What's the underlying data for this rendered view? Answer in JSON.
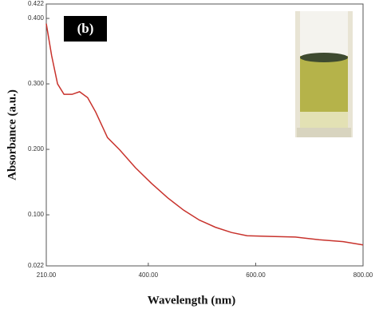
{
  "chart_data": {
    "type": "line",
    "annotation": "(b)",
    "x_label": "Wavelength (nm)",
    "y_label": "Absorbance (a.u.)",
    "x": [
      210,
      220,
      231,
      243,
      258,
      272,
      287,
      302,
      324,
      347,
      376,
      406,
      436,
      466,
      495,
      525,
      555,
      584,
      629,
      674,
      718,
      763,
      800
    ],
    "series": [
      {
        "color": "#c8322c",
        "values": [
          0.392,
          0.343,
          0.3,
          0.284,
          0.284,
          0.288,
          0.279,
          0.257,
          0.218,
          0.199,
          0.172,
          0.148,
          0.126,
          0.107,
          0.092,
          0.081,
          0.073,
          0.068,
          0.067,
          0.066,
          0.062,
          0.059,
          0.054
        ]
      }
    ],
    "xlim": [
      210,
      800
    ],
    "xticks": [
      {
        "value": 210,
        "label": "210.00"
      },
      {
        "value": 400,
        "label": "400.00"
      },
      {
        "value": 600,
        "label": "600.00"
      },
      {
        "value": 800,
        "label": "800.00"
      }
    ],
    "ylim": [
      0.022,
      0.422
    ],
    "yticks": [
      {
        "value": 0.022,
        "label": "0.022"
      },
      {
        "value": 0.1,
        "label": "0.100"
      },
      {
        "value": 0.2,
        "label": "0.200"
      },
      {
        "value": 0.3,
        "label": "0.300"
      },
      {
        "value": 0.4,
        "label": "0.400"
      },
      {
        "value": 0.422,
        "label": "0.422"
      }
    ]
  }
}
